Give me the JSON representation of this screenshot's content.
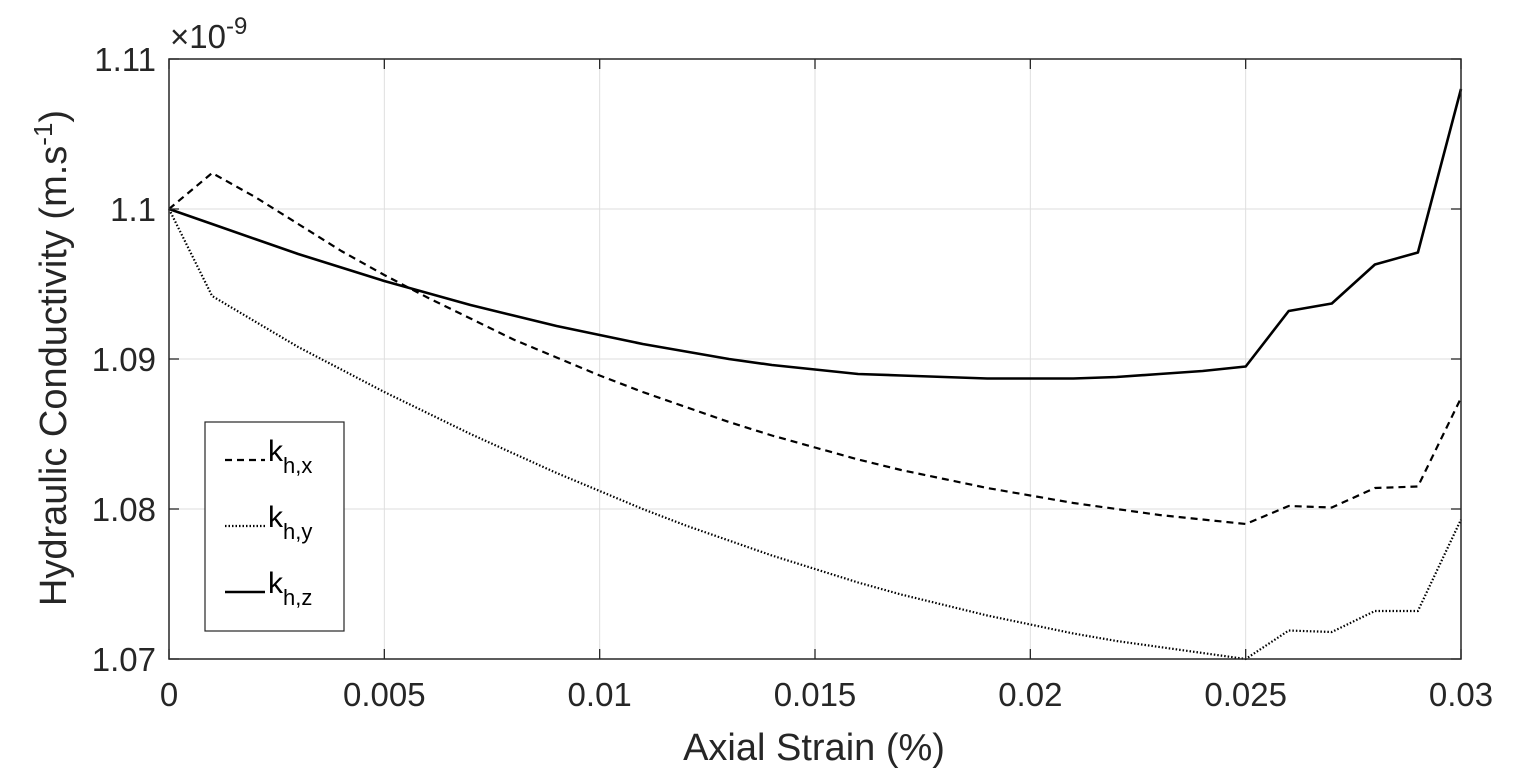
{
  "chart_data": {
    "type": "line",
    "xlabel": "Axial Strain (%)",
    "ylabel_main": "Hydraulic Conductivity (m.s",
    "ylabel_sup": "-1",
    "ylabel_close": ")",
    "exponent_prefix": "×10",
    "exponent_sup": "-9",
    "xlim": [
      0,
      0.03
    ],
    "ylim": [
      1.07,
      1.11
    ],
    "grid": true,
    "legend_position": "lower-left",
    "x_ticks": [
      "0",
      "0.005",
      "0.01",
      "0.015",
      "0.02",
      "0.025",
      "0.03"
    ],
    "y_ticks": [
      "1.07",
      "1.08",
      "1.09",
      "1.1",
      "1.11"
    ],
    "x": [
      0,
      0.001,
      0.002,
      0.003,
      0.004,
      0.005,
      0.006,
      0.007,
      0.008,
      0.009,
      0.01,
      0.011,
      0.012,
      0.013,
      0.014,
      0.015,
      0.016,
      0.017,
      0.018,
      0.019,
      0.02,
      0.021,
      0.022,
      0.023,
      0.024,
      0.025,
      0.026,
      0.027,
      0.028,
      0.029,
      0.03
    ],
    "series": [
      {
        "name": "k_h,x",
        "legend_main": "k",
        "legend_sub": "h,x",
        "style": "dashed",
        "values": [
          1.1,
          1.1024,
          1.1008,
          1.099,
          1.0972,
          1.0956,
          1.0941,
          1.0927,
          1.0913,
          1.0901,
          1.0889,
          1.0878,
          1.0868,
          1.0858,
          1.0849,
          1.0841,
          1.0833,
          1.0826,
          1.082,
          1.0814,
          1.0809,
          1.0804,
          1.08,
          1.0796,
          1.0793,
          1.079,
          1.0802,
          1.0801,
          1.0814,
          1.0815,
          1.0874
        ]
      },
      {
        "name": "k_h,y",
        "legend_main": "k",
        "legend_sub": "h,y",
        "style": "dotted",
        "values": [
          1.1,
          1.0942,
          1.0925,
          1.0908,
          1.0893,
          1.0878,
          1.0864,
          1.085,
          1.0837,
          1.0824,
          1.0812,
          1.08,
          1.0789,
          1.0779,
          1.0769,
          1.076,
          1.0751,
          1.0743,
          1.0736,
          1.0729,
          1.0723,
          1.0717,
          1.0712,
          1.0708,
          1.0704,
          1.07,
          1.0719,
          1.0718,
          1.0732,
          1.0732,
          1.0793
        ]
      },
      {
        "name": "k_h,z",
        "legend_main": "k",
        "legend_sub": "h,z",
        "style": "solid",
        "values": [
          1.1,
          1.099,
          1.098,
          1.097,
          1.0961,
          1.0952,
          1.0944,
          1.0936,
          1.0929,
          1.0922,
          1.0916,
          1.091,
          1.0905,
          1.09,
          1.0896,
          1.0893,
          1.089,
          1.0889,
          1.0888,
          1.0887,
          1.0887,
          1.0887,
          1.0888,
          1.089,
          1.0892,
          1.0895,
          1.0932,
          1.0937,
          1.0963,
          1.0971,
          1.108
        ]
      }
    ]
  }
}
